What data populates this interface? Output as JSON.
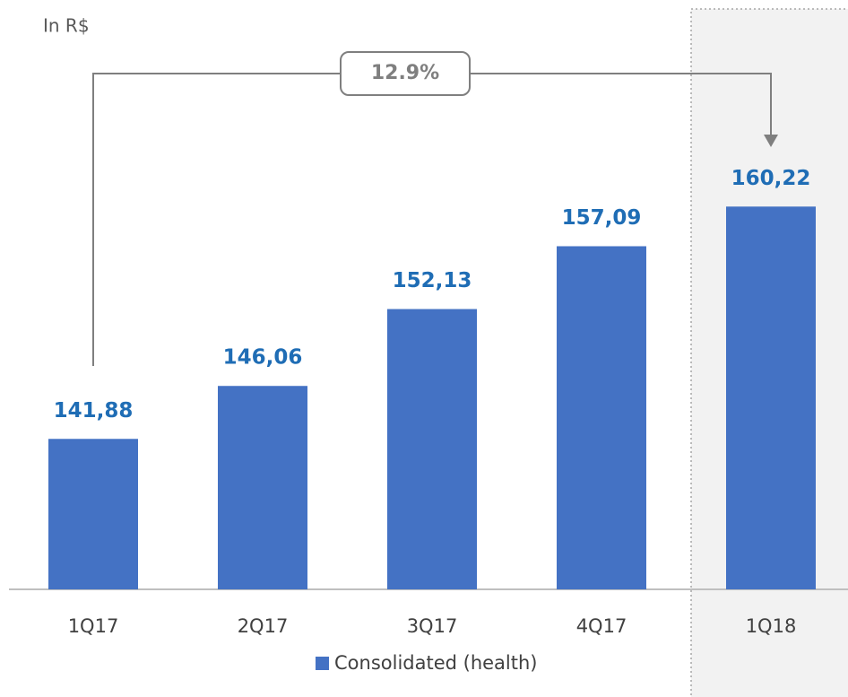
{
  "chart_data": {
    "type": "bar",
    "subtitle": "In R$",
    "annotation": "12.9%",
    "categories": [
      "1Q17",
      "2Q17",
      "3Q17",
      "4Q17",
      "1Q18"
    ],
    "series": [
      {
        "name": "Consolidated (health)",
        "color": "#4472c4",
        "values": [
          141.88,
          146.06,
          152.13,
          157.09,
          160.22
        ],
        "value_labels": [
          "141,88",
          "146,06",
          "152,13",
          "157,09",
          "160,22"
        ]
      }
    ],
    "ylim": [
      130,
      175
    ]
  }
}
